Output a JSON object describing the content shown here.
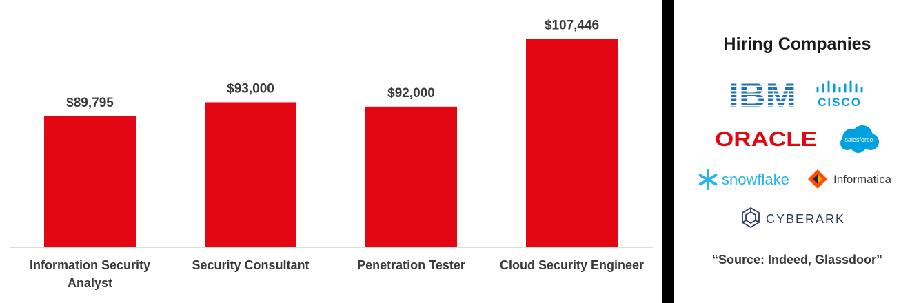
{
  "chart_data": {
    "type": "bar",
    "categories": [
      [
        "Information Security",
        "Analyst"
      ],
      [
        "Security Consultant"
      ],
      [
        "Penetration Tester"
      ],
      [
        "Cloud Security Engineer"
      ]
    ],
    "values": [
      89795,
      93000,
      92000,
      107446
    ],
    "value_labels": [
      "$89,795",
      "$93,000",
      "$92,000",
      "$107,446"
    ],
    "title": "",
    "xlabel": "",
    "ylabel": "",
    "ylim": [
      60000,
      110000
    ],
    "grid": false,
    "legend": "none",
    "bar_color": "#e30613"
  },
  "sidebar": {
    "title": "Hiring Companies",
    "logos": [
      "IBM",
      "CISCO",
      "ORACLE",
      "salesforce",
      "snowflake",
      "Informatica",
      "CYBERARK"
    ],
    "source": "“Source: Indeed, Glassdoor”"
  },
  "colors": {
    "ibm": "#1f70c1",
    "cisco": "#049fd9",
    "oracle": "#e30613",
    "salesforce": "#00a1e0",
    "snowflake": "#29b5e8",
    "informatica": "#ff4d00",
    "cyberark": "#2a3c5a"
  }
}
